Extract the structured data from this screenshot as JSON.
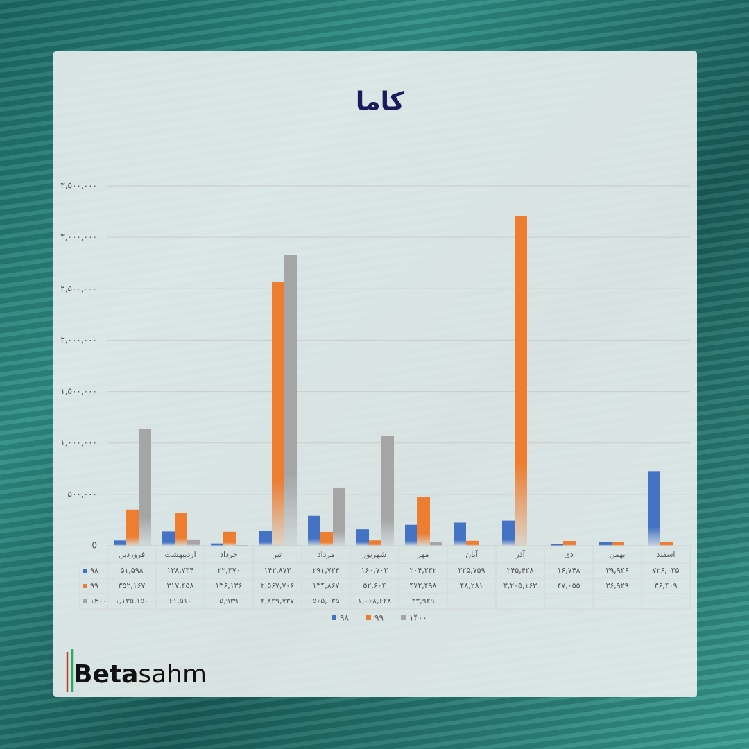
{
  "chart_data": {
    "type": "bar",
    "title": "کاما",
    "categories": [
      "فروردین",
      "اردیبهشت",
      "خرداد",
      "تیر",
      "مرداد",
      "شهریور",
      "مهر",
      "آبان",
      "آذر",
      "دی",
      "بهمن",
      "اسفند"
    ],
    "series": [
      {
        "name": "۹۸",
        "color": "#4472c4",
        "values": [
          51598,
          138734,
          22370,
          142873,
          291724,
          160702,
          204232,
          225759,
          245428,
          16748,
          39926,
          726035
        ],
        "value_labels": [
          "۵۱,۵۹۸",
          "۱۳۸,۷۳۴",
          "۲۲,۳۷۰",
          "۱۴۲,۸۷۳",
          "۲۹۱,۷۲۴",
          "۱۶۰,۷۰۲",
          "۲۰۴,۲۳۲",
          "۲۲۵,۷۵۹",
          "۲۴۵,۴۲۸",
          "۱۶,۷۴۸",
          "۳۹,۹۲۶",
          "۷۲۶,۰۳۵"
        ]
      },
      {
        "name": "۹۹",
        "color": "#ed7d31",
        "values": [
          352167,
          317458,
          136136,
          2567706,
          134867,
          52604,
          472498,
          48281,
          3205163,
          47055,
          36929,
          36409
        ],
        "value_labels": [
          "۳۵۲,۱۶۷",
          "۳۱۷,۴۵۸",
          "۱۳۶,۱۳۶",
          "۲,۵۶۷,۷۰۶",
          "۱۳۴,۸۶۷",
          "۵۲,۶۰۴",
          "۴۷۲,۴۹۸",
          "۴۸,۲۸۱",
          "۳,۲۰۵,۱۶۳",
          "۴۷,۰۵۵",
          "۳۶,۹۲۹",
          "۳۶,۴۰۹"
        ]
      },
      {
        "name": "۱۴۰۰",
        "color": "#a5a5a5",
        "values": [
          1135150,
          61510,
          5939,
          2829737,
          565035,
          1068628,
          33929,
          null,
          null,
          null,
          null,
          null
        ],
        "value_labels": [
          "۱,۱۳۵,۱۵۰",
          "۶۱,۵۱۰",
          "۵,۹۳۹",
          "۲,۸۲۹,۷۳۷",
          "۵۶۵,۰۳۵",
          "۱,۰۶۸,۶۲۸",
          "۳۳,۹۲۹",
          null,
          null,
          null,
          null,
          null
        ]
      }
    ],
    "ylim": [
      0,
      3500000
    ],
    "yticks": [
      0,
      {
        "value": 500000,
        "label": "۵۰۰,۰۰۰"
      },
      {
        "value": 1000000,
        "label": "۱,۰۰۰,۰۰۰"
      },
      {
        "value": 1500000,
        "label": "۱,۵۰۰,۰۰۰"
      },
      {
        "value": 2000000,
        "label": "۲,۰۰۰,۰۰۰"
      },
      {
        "value": 2500000,
        "label": "۲,۵۰۰,۰۰۰"
      },
      {
        "value": 3000000,
        "label": "۳,۰۰۰,۰۰۰"
      },
      {
        "value": 3500000,
        "label": "۳,۵۰۰,۰۰۰"
      }
    ],
    "grid": true
  },
  "logo": {
    "bold": "Beta",
    "regular": "sahm"
  }
}
